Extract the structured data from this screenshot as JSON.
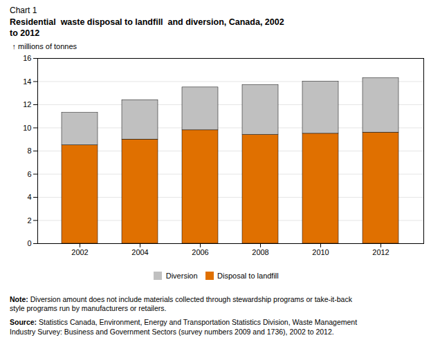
{
  "chart_data": {
    "type": "bar",
    "stacked": true,
    "subtitle": "Chart 1",
    "title": "Residential  waste disposal to landfill  and diversion, Canada, 2002\nto 2012",
    "ylabel": "millions of tonnes",
    "categories": [
      "2002",
      "2004",
      "2006",
      "2008",
      "2010",
      "2012"
    ],
    "series": [
      {
        "name": "Disposal to landfill",
        "color": "#E07000",
        "values": [
          8.5,
          9.0,
          9.8,
          9.4,
          9.5,
          9.6
        ]
      },
      {
        "name": "Diversion",
        "color": "#C0C0C0",
        "values": [
          2.8,
          3.4,
          3.7,
          4.3,
          4.5,
          4.7
        ]
      }
    ],
    "ylim": [
      0,
      16
    ],
    "yticks": [
      0,
      2,
      4,
      6,
      8,
      10,
      12,
      14,
      16
    ],
    "grid": true,
    "legend": "bottom",
    "annotations": [
      {
        "label": "Note:",
        "text": " Diversion amount does not include materials collected through stewardship programs or take-it-back\nstyle programs run by manufacturers or retailers."
      },
      {
        "label": "Source:",
        "text": " Statistics Canada, Environment, Energy and Transportation Statistics Division, Waste Management\nIndustry Survey: Business and Government Sectors (survey numbers 2009 and 1736), 2002 to 2012."
      }
    ]
  }
}
